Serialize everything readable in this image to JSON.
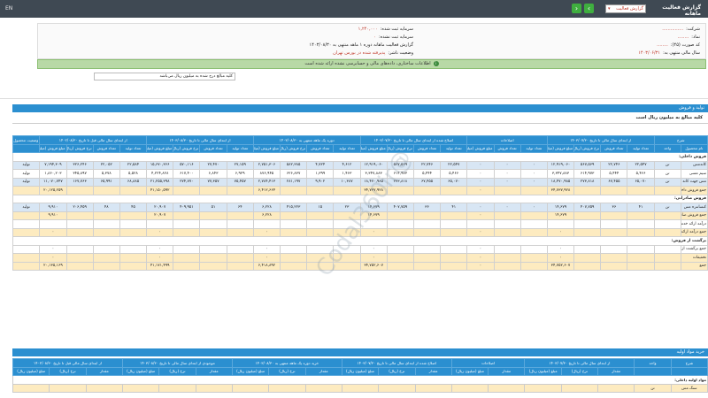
{
  "topbar": {
    "lang": "EN",
    "title": "گزارش فعالیت ماهانه",
    "report_select": "گزارش فعالیت",
    "prev": "‹",
    "next": "›"
  },
  "info": {
    "company_label": "شرکت:",
    "company_value": "...............",
    "symbol_label": "نماد:",
    "symbol_value": "........",
    "code_label": "کد صورت (۴۵):",
    "code_value": "........",
    "fiscal_label": "سال مالی منتهی به:",
    "fiscal_value": "۱۴۰۳/۰۶/۳۱",
    "capital_label": "سرمایه ثبت شده:",
    "capital_value": "۱,۲۴۰,۰۰۰",
    "unreg_label": "سرمایه ثبت نشده:",
    "unreg_value": "۰",
    "report_label": "گزارش فعالیت ماهانه دوره ۱ ماهه منتهی به ۱۴۰۳/۰۸/۳۰",
    "report_value": "",
    "status_label": "وضعیت ناشر:",
    "status_value": "پذیرفته شده در بورس تهران"
  },
  "notice": "اطلاعات ساختاری، داده‌های مالی و حسابرسی نشده ارائه شده است",
  "note": "کلیه مبالغ درج شده به میلیون ریال می‌باشد",
  "section1": {
    "title": "تولید و فروش",
    "subtitle": "کلیه مبالغ به میلیون ریال است"
  },
  "table1": {
    "group_headers": [
      "شرح",
      "از ابتدای سال مالی تا تاریخ ۱۴۰۳/۰۷/۳۰",
      "اصلاحات",
      "اصلاح شده از ابتدای سال مالی تا تاریخ ۱۴۰۳/۰۷/۳۰",
      "دوره یک ماهه منتهی به ۱۴۰۳/۰۸/۳۰",
      "از ابتدای سال مالی تا تاریخ ۱۴۰۳/۰۸/۳۰",
      "از ابتدای سال مالی قبل تا تاریخ ۱۴۰۲/۰۸/۳۰",
      "وضعیت محصول-واحد"
    ],
    "sub_headers": [
      "نام محصول",
      "واحد",
      "تعداد تولید",
      "تعداد فروش",
      "نرخ فروش (ریال)",
      "مبلغ فروش (میلیون ریال)",
      "تعداد تولید",
      "تعداد فروش",
      "مبلغ فروش (میلیون ریال)",
      "تعداد تولید",
      "تعداد فروش",
      "نرخ فروش (ریال)",
      "مبلغ فروش (میلیون ریال)",
      "تعداد تولید",
      "تعداد فروش",
      "نرخ فروش (ریال)",
      "مبلغ فروش (میلیون ریال)",
      "تعداد تولید",
      "تعداد فروش",
      "نرخ فروش (ریال)",
      "مبلغ فروش (میلیون ریال)",
      "تعداد تولید",
      "تعداد فروش",
      "نرخ فروش (ریال)",
      "مبلغ فروش (میلیون ریال)",
      ""
    ],
    "rows": [
      {
        "type": "sec",
        "cells": [
          "فروش داخلی:"
        ]
      },
      {
        "type": "blue",
        "cells": [
          "کاتدمس",
          "تن",
          "۲۲,۵۴۷",
          "۲۲,۷۴۶",
          "۵۶۷,۵۶۹",
          "۱۲,۹۱۹,۰۶۰",
          "۰",
          "۰",
          "۰",
          "۲۲,۵۴۷",
          "۲۲,۷۴۶",
          "۵۶۷,۵۶۹",
          "۱۲,۹۱۹,۰۶۰",
          "۴,۶۱۲",
          "۴,۷۲۴",
          "۵۸۲,۳۸۵",
          "۲,۷۵۱,۳۰۶",
          "۲۷,۱۵۹",
          "۲۷,۴۷۰",
          "۵۷۰,۱۱۶",
          "۱۵,۶۷۰,۳۶۶",
          "۲۲,۵۸۴",
          "۲۲,۰۵۲",
          "۳۲۶,۲۴۶",
          "۷,۱۹۴,۳۰۹",
          "تولید"
        ]
      },
      {
        "type": "wh",
        "cells": [
          "سیم مسی",
          "تن",
          "۵,۴۶۶",
          "۵,۴۴۴",
          "۶۱۴,۹۷۳",
          "۳,۳۴۷,۸۸۳",
          "۰",
          "۰",
          "۰",
          "۵,۴۶۶",
          "۵,۴۴۴",
          "۶۱۴,۹۷۳",
          "۳,۳۴۷,۸۸۳",
          "۱,۴۶۳",
          "۱,۳۹۹",
          "۶۲۶,۸۳۷",
          "۸۷۶,۹۴۵",
          "۶,۹۲۹",
          "۶,۸۴۳",
          "۶۱۷,۴۰۰",
          "۴,۲۲۴,۸۲۸",
          "۵,۵۲۸",
          "۵,۳۷۸",
          "۳۴۵,۸۹۷",
          "۱,۸۶۰,۲۰۳",
          "تولید"
        ]
      },
      {
        "type": "blue",
        "cells": [
          "مس جهت کاتد",
          "تن",
          "۶۵,۰۷۰",
          "۶۷,۴۵۵",
          "۲۷۳,۸۱۸",
          "۱۸,۴۷۰,۹۸۵",
          "۰",
          "۰",
          "۰",
          "۶۵,۰۷۰",
          "۶۷,۴۵۵",
          "۲۷۳,۸۱۸",
          "۱۸,۴۷۰,۹۸۵",
          "۱۰,۳۸۷",
          "۹,۹۰۲",
          "۲۸۱,۱۹۷",
          "۲,۷۸۴,۴۱۳",
          "۷۵,۴۵۷",
          "۷۷,۳۵۷",
          "۲۷۴,۷۷۰",
          "۲۱,۲۵۵,۳۹۸",
          "۶۸,۸۸۵",
          "۶۵,۹۹۱",
          "۱۶۷,۷۶۳",
          "۱۱,۰۷۰,۷۴۷",
          "تولید"
        ]
      },
      {
        "type": "yel",
        "cells": [
          "جمع فروش داخلی",
          "",
          "",
          "",
          "",
          "۳۴,۷۳۷,۹۲۸",
          "",
          "",
          "۰",
          "",
          "",
          "",
          "۳۴,۷۳۷,۹۲۸",
          "",
          "",
          "",
          "۶,۴۱۲,۶۶۴",
          "",
          "",
          "",
          "۴۱,۱۵۰,۵۹۲",
          "",
          "",
          "",
          "۲۰,۱۲۵,۲۵۹",
          ""
        ]
      },
      {
        "type": "sec",
        "cells": [
          "فروش صادراتی:"
        ]
      },
      {
        "type": "blue",
        "cells": [
          "کنسانتره مس",
          "تن",
          "۴۱",
          "۳۶",
          "۴۰۷,۷۵۹",
          "۱۴,۶۷۹",
          "۰",
          "۰",
          "۰",
          "۴۱",
          "۳۶",
          "۴۰۷,۷۵۹",
          "۱۴,۶۷۹",
          "۲۳",
          "۱۵",
          "۴۱۵,۲۲۳",
          "۶,۲۲۸",
          "۶۴",
          "۵۱",
          "۴۰۹,۹۵۱",
          "۲۰,۹۰۷",
          "۴۵",
          "۴۸",
          "۲۰۶,۴۵۹",
          "۹,۹۱۰",
          "تولید"
        ]
      },
      {
        "type": "yel",
        "cells": [
          "جمع فروش صادراتی",
          "",
          "",
          "",
          "",
          "۱۴,۶۷۹",
          "",
          "",
          "۰",
          "",
          "",
          "",
          "۱۴,۶۷۹",
          "",
          "",
          "",
          "۶,۲۲۸",
          "",
          "",
          "",
          "۲۰,۹۰۷",
          "",
          "",
          "",
          "۹,۹۱۰",
          ""
        ]
      },
      {
        "type": "wh",
        "cells": [
          "درآمد ارائه خدمات:",
          "",
          "",
          "",
          "",
          "",
          "",
          "",
          "",
          "",
          "",
          "",
          "",
          "",
          "",
          "",
          "",
          "",
          "",
          "",
          "",
          "",
          "",
          "",
          "",
          ""
        ]
      },
      {
        "type": "yel",
        "cells": [
          "جمع درآمد ارائه خدمات",
          "",
          "",
          "",
          "",
          "۰",
          "",
          "",
          "۰",
          "",
          "",
          "",
          "۰",
          "",
          "",
          "",
          "۰",
          "",
          "",
          "",
          "۰",
          "",
          "",
          "",
          "۰",
          ""
        ]
      },
      {
        "type": "sec",
        "cells": [
          "برگشت از فروش:"
        ]
      },
      {
        "type": "wh",
        "cells": [
          "جمع برگشت از فروش",
          "",
          "",
          "",
          "",
          "۰",
          "",
          "",
          "۰",
          "",
          "",
          "",
          "۰",
          "",
          "",
          "",
          "۰",
          "",
          "",
          "",
          "۰",
          "",
          "",
          "",
          "۰",
          ""
        ]
      },
      {
        "type": "yel",
        "cells": [
          "تخفیفات",
          "",
          "",
          "",
          "",
          "۰",
          "",
          "",
          "۰",
          "",
          "",
          "",
          "۰",
          "",
          "",
          "",
          "۰",
          "",
          "",
          "",
          "۰",
          "",
          "",
          "",
          "۰",
          ""
        ]
      },
      {
        "type": "yel",
        "cells": [
          "جمع",
          "",
          "",
          "",
          "",
          "۳۴,۷۵۲,۶۰۷",
          "",
          "",
          "۰",
          "",
          "",
          "",
          "۳۴,۷۵۲,۶۰۷",
          "",
          "",
          "",
          "۶,۴۱۸,۸۹۲",
          "",
          "",
          "",
          "۴۱,۱۷۱,۴۹۹",
          "",
          "",
          "",
          "۲۰,۱۳۵,۱۶۹",
          ""
        ]
      }
    ]
  },
  "section2": {
    "title": "خرید مواد اولیه"
  },
  "table2": {
    "group_headers": [
      "شرح",
      "واحد",
      "از ابتدای سال مالی تا تاریخ ۱۴۰۳/۰۷/۳۰",
      "اصلاحات",
      "اصلاح شده از ابتدای سال مالی تا تاریخ ۱۴۰۳/۰۷/۳۰",
      "خرید دوره یک ماهه منتهی به ۱۴۰۳/۰۸/۳۰",
      "موجودی از ابتدای سال مالی تا تاریخ ۱۴۰۳/۰۸/۳۰",
      "از ابتدای سال مالی قبل تا تاریخ ۱۴۰۲/۰۸/۳۰"
    ],
    "sub_headers": [
      "",
      "",
      "مقدار",
      "نرخ (ریال)",
      "مبلغ (میلیون ریال)",
      "مقدار",
      "مبلغ (میلیون ریال)",
      "مقدار",
      "نرخ (ریال)",
      "مبلغ (میلیون ریال)",
      "مقدار",
      "نرخ (ریال)",
      "مبلغ (میلیون ریال)",
      "مقدار",
      "نرخ (ریال)",
      "مبلغ (میلیون ریال)",
      "مقدار",
      "نرخ (ریال)",
      "مبلغ (میلیون ریال)"
    ],
    "rows": [
      {
        "type": "sec",
        "cells": [
          "مواد اولیه داخلی:"
        ]
      },
      {
        "type": "yel",
        "cells": [
          "سنگ مس",
          "تن",
          "",
          "",
          "",
          "",
          "",
          "",
          "",
          "",
          "",
          "",
          "",
          "",
          "",
          "",
          "",
          "",
          ""
        ]
      }
    ]
  },
  "watermark": "@Codal360ir"
}
